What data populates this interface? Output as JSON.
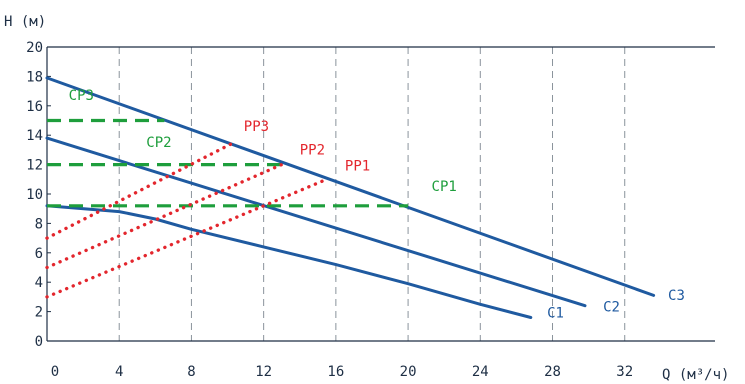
{
  "chart_data": {
    "type": "line",
    "title": "",
    "xlabel": "Q (м³/ч)",
    "ylabel": "H (м)",
    "xlim": [
      0,
      37
    ],
    "ylim": [
      0,
      20
    ],
    "xticks": [
      0,
      4,
      8,
      12,
      16,
      20,
      24,
      28,
      32
    ],
    "yticks": [
      0,
      2,
      4,
      6,
      8,
      10,
      12,
      14,
      16,
      18,
      20
    ],
    "grid": "x-dashed",
    "series": [
      {
        "name": "C1",
        "style": "solid",
        "color": "#1f5aa0",
        "label_color": "#1f5aa0",
        "points": [
          [
            0,
            9.2
          ],
          [
            4,
            8.8
          ],
          [
            6,
            8.3
          ],
          [
            8,
            7.6
          ],
          [
            12,
            6.4
          ],
          [
            16,
            5.2
          ],
          [
            20,
            3.9
          ],
          [
            24,
            2.5
          ],
          [
            26.8,
            1.6
          ]
        ]
      },
      {
        "name": "C2",
        "style": "solid",
        "color": "#1f5aa0",
        "label_color": "#1f5aa0",
        "points": [
          [
            0,
            13.8
          ],
          [
            29.8,
            2.4
          ]
        ]
      },
      {
        "name": "C3",
        "style": "solid",
        "color": "#1f5aa0",
        "label_color": "#1f5aa0",
        "points": [
          [
            0,
            17.9
          ],
          [
            33.6,
            3.1
          ]
        ]
      },
      {
        "name": "CP1",
        "style": "dashed",
        "color": "#1e9e3c",
        "label_color": "#1e9e3c",
        "points": [
          [
            0,
            9.2
          ],
          [
            20,
            9.2
          ]
        ]
      },
      {
        "name": "CP2",
        "style": "dashed",
        "color": "#1e9e3c",
        "label_color": "#1e9e3c",
        "points": [
          [
            0,
            12
          ],
          [
            13,
            12
          ]
        ]
      },
      {
        "name": "CP3",
        "style": "dashed",
        "color": "#1e9e3c",
        "label_color": "#1e9e3c",
        "points": [
          [
            0,
            15
          ],
          [
            6.5,
            15
          ]
        ]
      },
      {
        "name": "PP1",
        "style": "dotted",
        "color": "#e3262d",
        "label_color": "#e3262d",
        "points": [
          [
            0,
            3
          ],
          [
            15.5,
            11
          ]
        ]
      },
      {
        "name": "PP2",
        "style": "dotted",
        "color": "#e3262d",
        "label_color": "#e3262d",
        "points": [
          [
            0,
            5
          ],
          [
            13,
            12
          ]
        ]
      },
      {
        "name": "PP3",
        "style": "dotted",
        "color": "#e3262d",
        "label_color": "#e3262d",
        "points": [
          [
            0,
            7
          ],
          [
            10.5,
            13.6
          ]
        ]
      }
    ],
    "annotations": [
      {
        "text": "C1",
        "x": 27.7,
        "y": 1.6,
        "color": "#1f5aa0"
      },
      {
        "text": "C2",
        "x": 30.8,
        "y": 2.0,
        "color": "#1f5aa0"
      },
      {
        "text": "C3",
        "x": 34.4,
        "y": 2.8,
        "color": "#1f5aa0"
      },
      {
        "text": "CP1",
        "x": 21.3,
        "y": 10.2,
        "color": "#1e9e3c"
      },
      {
        "text": "CP2",
        "x": 5.5,
        "y": 13.2,
        "color": "#1e9e3c"
      },
      {
        "text": "CP3",
        "x": 1.2,
        "y": 16.4,
        "color": "#1e9e3c"
      },
      {
        "text": "PP1",
        "x": 16.5,
        "y": 11.6,
        "color": "#e3262d"
      },
      {
        "text": "PP2",
        "x": 14.0,
        "y": 12.7,
        "color": "#e3262d"
      },
      {
        "text": "PP3",
        "x": 10.9,
        "y": 14.3,
        "color": "#e3262d"
      }
    ]
  }
}
